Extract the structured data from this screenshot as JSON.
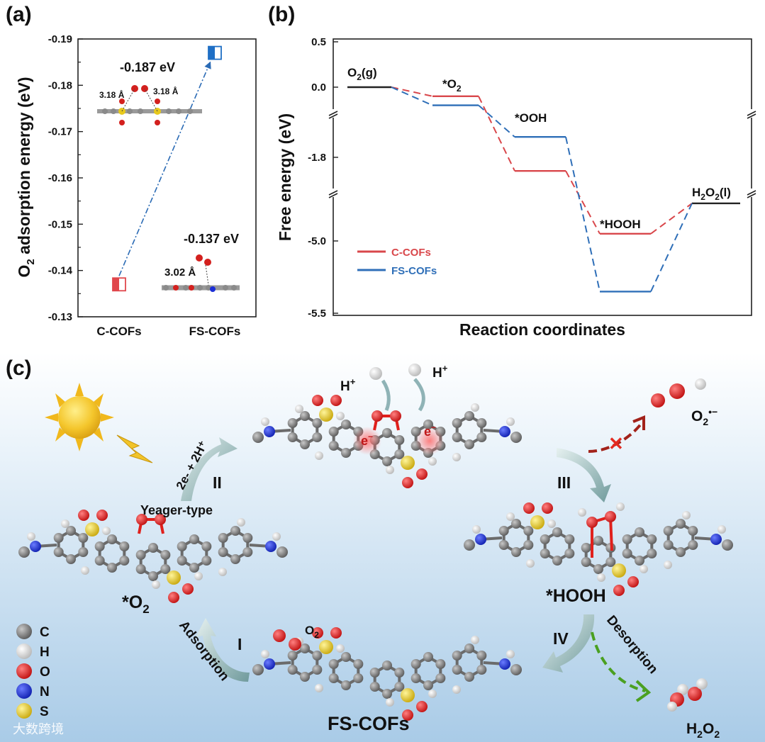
{
  "panels": {
    "a": "(a)",
    "b": "(b)",
    "c": "(c)"
  },
  "chart_data": [
    {
      "type": "scatter",
      "ylabel_main": "O",
      "ylabel_sub": "2",
      "ylabel_rest": " adsorption energy (eV)",
      "categories": [
        "C-COFs",
        "FS-COFs"
      ],
      "values": [
        -0.137,
        -0.187
      ],
      "ylim": [
        -0.13,
        -0.19
      ],
      "yticks": [
        "-0.13",
        "-0.14",
        "-0.15",
        "-0.16",
        "-0.17",
        "-0.18",
        "-0.19"
      ],
      "annotations": {
        "fs_energy": "-0.187 eV",
        "c_energy": "-0.137 eV",
        "fs_dist_left": "3.18 Å",
        "fs_dist_right": "3.18 Å",
        "c_dist": "3.02 Å"
      },
      "colors": {
        "c": "#e0474c",
        "fs": "#1f6fc5"
      }
    },
    {
      "type": "line",
      "xlabel": "Reaction coordinates",
      "ylabel": "Free energy (eV)",
      "yticks": [
        "0.5",
        "0.0",
        "-1.8",
        "-5.0",
        "-5.5"
      ],
      "states": {
        "o2g_main": "O",
        "o2g_sub": "2",
        "o2g_rest": "(g)",
        "o2ads_main": "*O",
        "o2ads_sub": "2",
        "ooh": "*OOH",
        "hooh": "*HOOH",
        "h2o2_main": "H",
        "h2o2_sub": "2",
        "h2o2_mid": "O",
        "h2o2_sub2": "2",
        "h2o2_rest": "(l)"
      },
      "series": [
        {
          "name": "C-COFs",
          "color": "#d9474b",
          "values": [
            0.0,
            -0.1,
            -2.2,
            -4.95,
            -4.74
          ]
        },
        {
          "name": "FS-COFs",
          "color": "#2f6fb8",
          "values": [
            0.0,
            -0.2,
            -1.2,
            -5.35,
            -4.74
          ]
        }
      ]
    }
  ],
  "scheme": {
    "steps": {
      "I": "I",
      "II": "II",
      "III": "III",
      "IV": "IV"
    },
    "arc_labels": {
      "adsorption": "Adsorption",
      "desorption": "Desorption",
      "yeager": "Yeager-type",
      "proton": "2e- + 2H⁺"
    },
    "labels": {
      "o2star": "*O",
      "o2star_sub": "2",
      "hooh": "*HOOH",
      "fscofs": "FS-COFs",
      "o2": "O",
      "o2_sub": "2",
      "h2o2_main": "H",
      "h2o2_sub": "2",
      "h2o2_rest": "O",
      "h2o2_sub2": "2",
      "superoxide": "O",
      "superoxide_sub": "2",
      "superoxide_sup": "•−",
      "h_plus_l": "H",
      "h_plus_r": "H",
      "plus": "+",
      "e_l": "e",
      "e_r": "e",
      "minus": "−",
      "cross": "✕"
    },
    "legend": [
      {
        "symbol": "C",
        "color": "#7a7a7a"
      },
      {
        "symbol": "H",
        "color": "#f2f2f2"
      },
      {
        "symbol": "O",
        "color": "#e0201c"
      },
      {
        "symbol": "N",
        "color": "#1c2fd6"
      },
      {
        "symbol": "S",
        "color": "#e8d21c"
      }
    ],
    "watermark": "大数跨境"
  }
}
